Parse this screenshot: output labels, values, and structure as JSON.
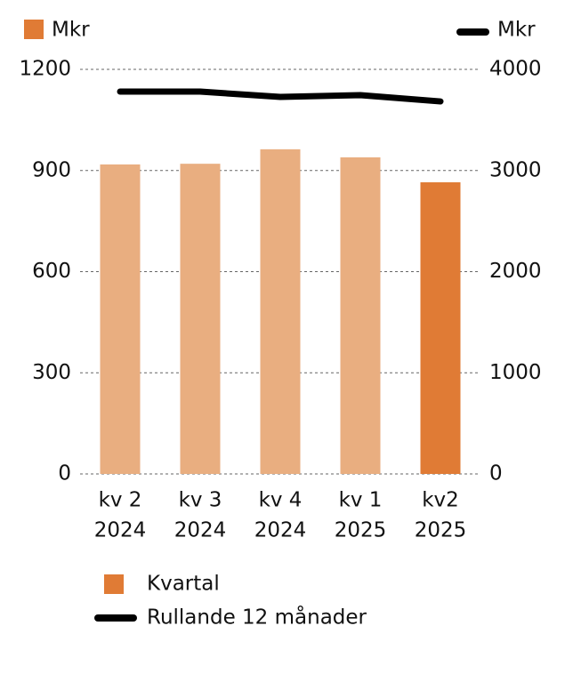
{
  "chart_data": {
    "type": "bar_line",
    "y_label": "Mkr",
    "y2_label": "Mkr",
    "categories": [
      [
        "kv 2",
        "2024"
      ],
      [
        "kv 3",
        "2024"
      ],
      [
        "kv 4",
        "2024"
      ],
      [
        "kv 1",
        "2025"
      ],
      [
        "kv2",
        "2025"
      ]
    ],
    "series": [
      {
        "name": "Kvartal",
        "type": "bar",
        "color": "#e07b35",
        "colors": [
          "#e9ae80",
          "#e9ae80",
          "#e9ae80",
          "#e9ae80",
          "#e07b35"
        ],
        "values": [
          918,
          920,
          963,
          939,
          865
        ]
      },
      {
        "name": "Rullande 12 månader",
        "type": "line",
        "axis": "y2",
        "color": "#000000",
        "values": [
          3780,
          3780,
          3727,
          3745,
          3683
        ]
      }
    ],
    "ylim": [
      0,
      1200
    ],
    "yticks": [
      0,
      300,
      600,
      900,
      1200
    ],
    "y2lim": [
      0,
      4000
    ],
    "y2ticks": [
      0,
      1000,
      2000,
      3000,
      4000
    ],
    "grid": true
  }
}
